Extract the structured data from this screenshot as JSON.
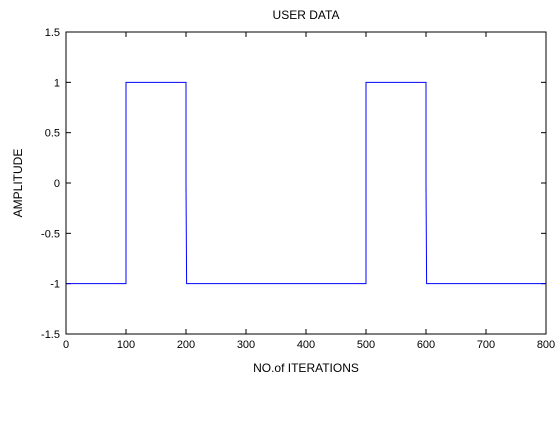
{
  "chart_data": {
    "type": "line",
    "title": "USER DATA",
    "xlabel": "NO.of ITERATIONS",
    "ylabel": "AMPLITUDE",
    "xlim": [
      0,
      800
    ],
    "ylim": [
      -1.5,
      1.5
    ],
    "xticks": [
      0,
      100,
      200,
      300,
      400,
      500,
      600,
      700,
      800
    ],
    "yticks": [
      -1.5,
      -1,
      -0.5,
      0,
      0.5,
      1,
      1.5
    ],
    "ytick_labels": [
      "-1.5",
      "-1",
      "-0.5",
      "0",
      "0.5",
      "1",
      "1.5"
    ],
    "grid": false,
    "series": [
      {
        "color": "#0000ff",
        "x": [
          0,
          100,
          100,
          200,
          200,
          200,
          201,
          500,
          500,
          600,
          600,
          600,
          601,
          800
        ],
        "y": [
          -1,
          -1,
          1,
          1,
          0,
          0,
          -1,
          -1,
          1,
          1,
          0,
          0,
          -1,
          -1
        ]
      }
    ]
  }
}
